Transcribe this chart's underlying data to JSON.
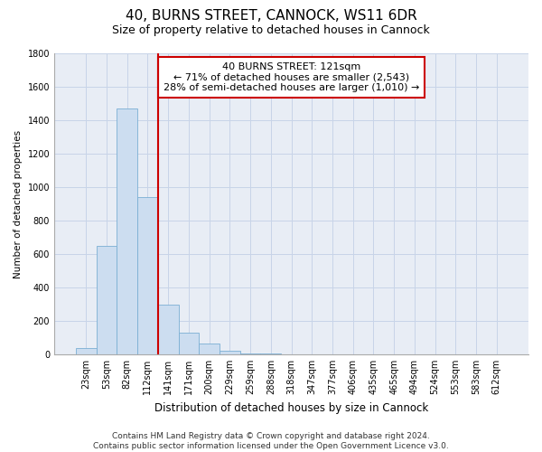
{
  "title": "40, BURNS STREET, CANNOCK, WS11 6DR",
  "subtitle": "Size of property relative to detached houses in Cannock",
  "xlabel": "Distribution of detached houses by size in Cannock",
  "ylabel": "Number of detached properties",
  "categories": [
    "23sqm",
    "53sqm",
    "82sqm",
    "112sqm",
    "141sqm",
    "171sqm",
    "200sqm",
    "229sqm",
    "259sqm",
    "288sqm",
    "318sqm",
    "347sqm",
    "377sqm",
    "406sqm",
    "435sqm",
    "465sqm",
    "494sqm",
    "524sqm",
    "553sqm",
    "583sqm",
    "612sqm"
  ],
  "values": [
    35,
    650,
    1470,
    940,
    295,
    130,
    65,
    22,
    5,
    3,
    2,
    2,
    2,
    2,
    1,
    1,
    1,
    1,
    1,
    1,
    1
  ],
  "bar_color": "#ccddf0",
  "bar_edge_color": "#7bafd4",
  "vline_x_index": 3,
  "vline_color": "#cc0000",
  "annotation_text": "40 BURNS STREET: 121sqm\n← 71% of detached houses are smaller (2,543)\n28% of semi-detached houses are larger (1,010) →",
  "annotation_box_facecolor": "#ffffff",
  "annotation_box_edgecolor": "#cc0000",
  "ylim": [
    0,
    1800
  ],
  "yticks": [
    0,
    200,
    400,
    600,
    800,
    1000,
    1200,
    1400,
    1600,
    1800
  ],
  "footnote": "Contains HM Land Registry data © Crown copyright and database right 2024.\nContains public sector information licensed under the Open Government Licence v3.0.",
  "bg_color": "#ffffff",
  "plot_bg_color": "#e8edf5",
  "grid_color": "#c8d4e8",
  "title_fontsize": 11,
  "subtitle_fontsize": 9,
  "xlabel_fontsize": 8.5,
  "ylabel_fontsize": 7.5,
  "tick_fontsize": 7,
  "annot_fontsize": 8,
  "footnote_fontsize": 6.5
}
